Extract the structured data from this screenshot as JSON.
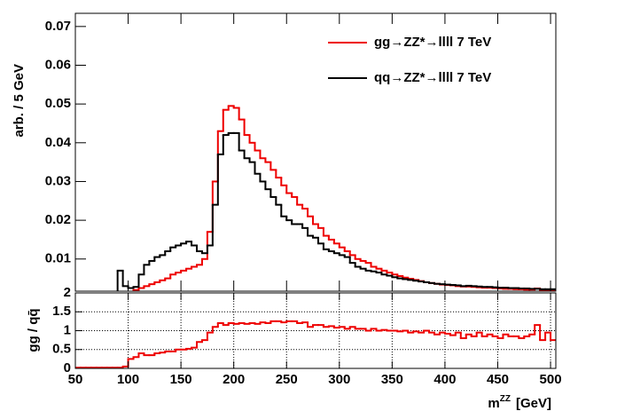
{
  "chart_data": [
    {
      "type": "step-histogram",
      "y_label": "arb. / 5 GeV",
      "legend": "top-right",
      "bins": [
        50,
        55,
        60,
        65,
        70,
        75,
        80,
        85,
        90,
        95,
        100,
        105,
        110,
        115,
        120,
        125,
        130,
        135,
        140,
        145,
        150,
        155,
        160,
        165,
        170,
        175,
        180,
        185,
        190,
        195,
        200,
        205,
        210,
        215,
        220,
        225,
        230,
        235,
        240,
        245,
        250,
        255,
        260,
        265,
        270,
        275,
        280,
        285,
        290,
        295,
        300,
        305,
        310,
        315,
        320,
        325,
        330,
        335,
        340,
        345,
        350,
        355,
        360,
        365,
        370,
        375,
        380,
        385,
        390,
        395,
        400,
        405,
        410,
        415,
        420,
        425,
        430,
        435,
        440,
        445,
        450,
        455,
        460,
        465,
        470,
        475,
        480,
        485,
        490,
        495,
        500,
        505
      ],
      "xlim": [
        50,
        505
      ],
      "xticks": [
        50,
        100,
        150,
        200,
        250,
        300,
        350,
        400,
        450,
        500
      ],
      "ylim": [
        0.0017,
        0.0734
      ],
      "yticks": [
        0.01,
        0.02,
        0.03,
        0.04,
        0.05,
        0.06,
        0.07
      ],
      "series": [
        {
          "name": "gg→ZZ*→llll 7 TeV",
          "color": "#ee0000",
          "values": [
            0,
            0,
            0,
            0,
            0,
            0,
            0,
            0,
            0,
            0.0015,
            0.0015,
            0.002,
            0.0025,
            0.003,
            0.0035,
            0.004,
            0.0045,
            0.005,
            0.006,
            0.0065,
            0.007,
            0.0075,
            0.008,
            0.0085,
            0.01,
            0.017,
            0.03,
            0.043,
            0.0485,
            0.0495,
            0.049,
            0.046,
            0.042,
            0.04,
            0.038,
            0.036,
            0.035,
            0.033,
            0.031,
            0.029,
            0.027,
            0.026,
            0.024,
            0.023,
            0.021,
            0.019,
            0.018,
            0.016,
            0.015,
            0.014,
            0.013,
            0.012,
            0.011,
            0.01,
            0.0095,
            0.009,
            0.008,
            0.0075,
            0.007,
            0.0065,
            0.006,
            0.0056,
            0.0052,
            0.0049,
            0.0046,
            0.0043,
            0.004,
            0.0038,
            0.0036,
            0.0034,
            0.0033,
            0.0032,
            0.003,
            0.0029,
            0.0029,
            0.0028,
            0.0027,
            0.0026,
            0.0026,
            0.0025,
            0.0024,
            0.0023,
            0.0023,
            0.0022,
            0.0022,
            0.0021,
            0.0021,
            0.0024,
            0.002,
            0.002,
            0.0019
          ]
        },
        {
          "name": "qq→ZZ*→llll 7 TeV",
          "color": "#000000",
          "values": [
            0,
            0,
            0,
            0,
            0,
            0,
            0,
            0,
            0.007,
            0.003,
            0.0025,
            0.0028,
            0.006,
            0.0085,
            0.0095,
            0.0105,
            0.011,
            0.012,
            0.013,
            0.0135,
            0.014,
            0.0145,
            0.0135,
            0.012,
            0.0115,
            0.0135,
            0.024,
            0.037,
            0.042,
            0.0425,
            0.0425,
            0.038,
            0.036,
            0.035,
            0.032,
            0.03,
            0.028,
            0.026,
            0.024,
            0.021,
            0.02,
            0.019,
            0.019,
            0.018,
            0.016,
            0.0155,
            0.014,
            0.0125,
            0.012,
            0.0115,
            0.011,
            0.0105,
            0.009,
            0.008,
            0.0075,
            0.007,
            0.0068,
            0.0065,
            0.006,
            0.0057,
            0.0053,
            0.005,
            0.0048,
            0.0046,
            0.0044,
            0.0042,
            0.004,
            0.0038,
            0.0036,
            0.0035,
            0.0034,
            0.0033,
            0.0032,
            0.003,
            0.0031,
            0.003,
            0.0029,
            0.0028,
            0.0028,
            0.0027,
            0.0026,
            0.0026,
            0.0025,
            0.0025,
            0.0024,
            0.0024,
            0.0023,
            0.0023,
            0.0022,
            0.0022,
            0.0022
          ]
        }
      ]
    },
    {
      "type": "step-histogram",
      "y_label": "gg / qq̄",
      "x_label": "m",
      "x_label_superscript": "ZZ",
      "x_label_unit": "[GeV]",
      "grid": true,
      "bins": [
        50,
        55,
        60,
        65,
        70,
        75,
        80,
        85,
        90,
        95,
        100,
        105,
        110,
        115,
        120,
        125,
        130,
        135,
        140,
        145,
        150,
        155,
        160,
        165,
        170,
        175,
        180,
        185,
        190,
        195,
        200,
        205,
        210,
        215,
        220,
        225,
        230,
        235,
        240,
        245,
        250,
        255,
        260,
        265,
        270,
        275,
        280,
        285,
        290,
        295,
        300,
        305,
        310,
        315,
        320,
        325,
        330,
        335,
        340,
        345,
        350,
        355,
        360,
        365,
        370,
        375,
        380,
        385,
        390,
        395,
        400,
        405,
        410,
        415,
        420,
        425,
        430,
        435,
        440,
        445,
        450,
        455,
        460,
        465,
        470,
        475,
        480,
        485,
        490,
        495,
        500,
        505
      ],
      "xlim": [
        50,
        505
      ],
      "xticks": [
        50,
        100,
        150,
        200,
        250,
        300,
        350,
        400,
        450,
        500
      ],
      "ylim": [
        0,
        2
      ],
      "yticks": [
        0,
        0.5,
        1,
        1.5,
        2
      ],
      "series": [
        {
          "color": "#ee0000",
          "values": [
            0.02,
            0.02,
            0.02,
            0.02,
            0.02,
            0.02,
            0.02,
            0.02,
            0.02,
            0.05,
            0.25,
            0.3,
            0.4,
            0.35,
            0.35,
            0.4,
            0.42,
            0.45,
            0.45,
            0.5,
            0.5,
            0.52,
            0.55,
            0.7,
            0.75,
            0.95,
            1.1,
            1.2,
            1.15,
            1.2,
            1.18,
            1.2,
            1.18,
            1.2,
            1.18,
            1.22,
            1.2,
            1.25,
            1.25,
            1.22,
            1.25,
            1.25,
            1.2,
            1.22,
            1.1,
            1.15,
            1.15,
            1.1,
            1.12,
            1.08,
            1.1,
            1.05,
            1.1,
            1.05,
            1.05,
            1,
            1.05,
            1,
            1.02,
            1,
            1,
            0.98,
            1,
            0.95,
            0.98,
            0.95,
            1,
            0.95,
            0.9,
            0.95,
            0.92,
            0.88,
            0.95,
            0.8,
            0.9,
            0.85,
            0.95,
            0.85,
            0.9,
            0.85,
            0.8,
            0.9,
            0.85,
            0.85,
            0.8,
            0.85,
            0.9,
            1.15,
            0.75,
            0.95,
            0.75
          ]
        }
      ]
    }
  ]
}
